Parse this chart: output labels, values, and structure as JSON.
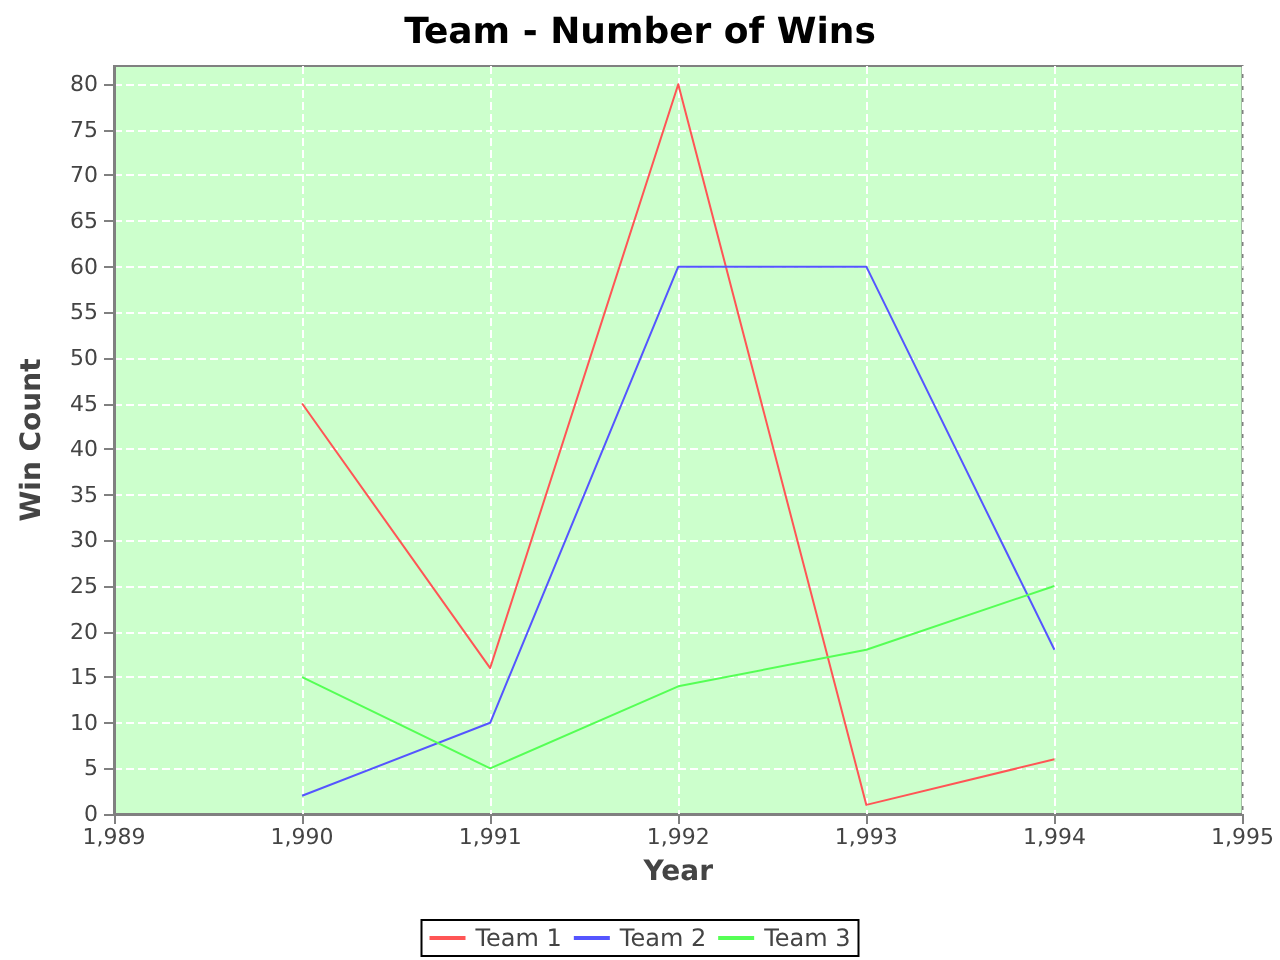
{
  "chart_data": {
    "type": "line",
    "title": "Team - Number of Wins",
    "xlabel": "Year",
    "ylabel": "Win Count",
    "x": [
      1990,
      1991,
      1992,
      1993,
      1994
    ],
    "series": [
      {
        "name": "Team 1",
        "color": "#ff5555",
        "values": [
          45,
          16,
          80,
          1,
          6
        ]
      },
      {
        "name": "Team 2",
        "color": "#5555ff",
        "values": [
          2,
          10,
          60,
          60,
          18
        ]
      },
      {
        "name": "Team 3",
        "color": "#55ff55",
        "values": [
          15,
          5,
          14,
          18,
          25
        ]
      }
    ],
    "xlim": [
      1989,
      1995
    ],
    "xticks": [
      {
        "value": 1989,
        "label": "1,989"
      },
      {
        "value": 1990,
        "label": "1,990"
      },
      {
        "value": 1991,
        "label": "1,991"
      },
      {
        "value": 1992,
        "label": "1,992"
      },
      {
        "value": 1993,
        "label": "1,993"
      },
      {
        "value": 1994,
        "label": "1,994"
      },
      {
        "value": 1995,
        "label": "1,995"
      }
    ],
    "ylim": [
      0,
      82
    ],
    "yticks": [
      0,
      5,
      10,
      15,
      20,
      25,
      30,
      35,
      40,
      45,
      50,
      55,
      60,
      65,
      70,
      75,
      80
    ],
    "grid": true,
    "legend": "bottom",
    "marker": "none",
    "line_style": "solid"
  }
}
